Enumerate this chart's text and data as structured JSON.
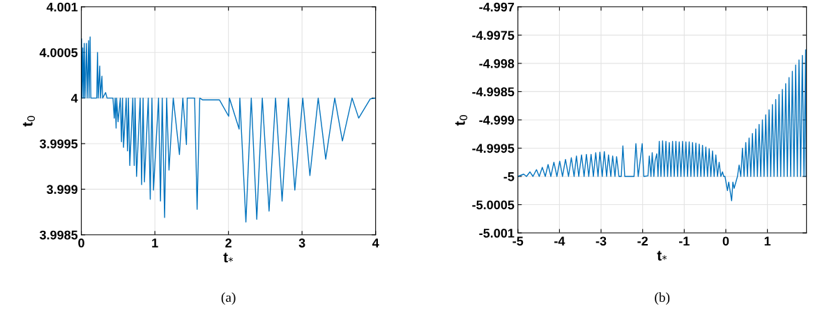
{
  "chart_data": [
    {
      "type": "line",
      "xlabel": "t$_{*}$",
      "ylabel": "t$_{0}$",
      "annotations": [
        "(a)"
      ],
      "xlim": [
        0,
        4
      ],
      "xticks": [
        0,
        1,
        2,
        3,
        4
      ],
      "ylim": [
        3.9985,
        4.001
      ],
      "yticks": [
        3.9985,
        3.999,
        3.9995,
        4,
        4.0005,
        4.001
      ],
      "grid": true,
      "series": [
        {
          "color": "#0072bd",
          "x": [
            0,
            0.003,
            0.01,
            0.02,
            0.03,
            0.04,
            0.05,
            0.07,
            0.08,
            0.1,
            0.105,
            0.12,
            0.13,
            0.21,
            0.22,
            0.23,
            0.25,
            0.26,
            0.28,
            0.29,
            0.33,
            0.35,
            0.43,
            0.448,
            0.46,
            0.473,
            0.48,
            0.5,
            0.53,
            0.546,
            0.56,
            0.574,
            0.61,
            0.628,
            0.64,
            0.659,
            0.7,
            0.719,
            0.73,
            0.751,
            0.8,
            0.82,
            0.84,
            0.858,
            0.91,
            0.937,
            0.96,
            0.981,
            1.05,
            1.076,
            1.1,
            1.132,
            1.16,
            1.192,
            1.25,
            1.334,
            1.38,
            1.429,
            1.44,
            1.54,
            1.574,
            1.61,
            1.647,
            1.877,
            2.003,
            2.013,
            2.145,
            2.155,
            2.237,
            2.31,
            2.385,
            2.46,
            2.552,
            2.64,
            2.729,
            2.815,
            2.902,
            3.01,
            3.107,
            3.22,
            3.322,
            3.445,
            3.549,
            3.68,
            3.77,
            3.927,
            4.0
          ],
          "values": [
            4.0,
            4.00065,
            4.0,
            4.00055,
            4.0,
            4.0006,
            4.0,
            4.0006,
            4.0,
            4.00063,
            4.0,
            4.00067,
            4.0,
            4.0,
            4.0005,
            4.0,
            4.00035,
            4.0,
            4.00024,
            4.0,
            4.00006,
            4.0,
            4.0,
            3.99978,
            4.0,
            3.99967,
            4.0,
            3.99974,
            4.0,
            3.99952,
            4.0,
            3.99946,
            4.0,
            3.99942,
            4.0,
            3.99926,
            4.0,
            3.99926,
            4.0,
            3.99914,
            4.0,
            3.99905,
            4.0,
            3.99908,
            4.0,
            3.99889,
            4.0,
            3.99899,
            4.0,
            3.99887,
            4.0,
            3.99869,
            4.0,
            3.99921,
            4.0,
            3.99938,
            4.0,
            3.99949,
            4.0,
            4.0,
            3.99878,
            4.0,
            3.99998,
            3.99998,
            3.9998,
            4.0,
            3.99966,
            4.0,
            3.99864,
            4.0,
            3.99867,
            4.0,
            3.99876,
            4.0,
            3.99887,
            4.0,
            3.99899,
            4.0,
            3.99915,
            4.0,
            3.99933,
            4.0,
            3.99953,
            4.0,
            3.99978,
            3.99999,
            4.0
          ]
        }
      ]
    },
    {
      "type": "line",
      "xlabel": "t$_{*}$",
      "ylabel": "t$_{0}$",
      "annotations": [
        "(b)"
      ],
      "xlim": [
        -5,
        1.94
      ],
      "xticks": [
        -5,
        -4,
        -3,
        -2,
        -1,
        0,
        1
      ],
      "ylim": [
        -5.001,
        -4.997
      ],
      "yticks": [
        -5.001,
        -5.0005,
        -5,
        -4.9995,
        -4.999,
        -4.9985,
        -4.998,
        -4.9975,
        -4.997
      ],
      "grid": true,
      "series": [
        {
          "color": "#0072bd",
          "x": [
            -5,
            -4.86,
            -4.793,
            -4.709,
            -4.637,
            -4.553,
            -4.486,
            -4.413,
            -4.341,
            -4.274,
            -4.207,
            -4.134,
            -4.061,
            -3.994,
            -3.927,
            -3.855,
            -3.782,
            -3.715,
            -3.648,
            -3.592,
            -3.536,
            -3.469,
            -3.408,
            -3.352,
            -3.296,
            -3.24,
            -3.184,
            -3.128,
            -3.073,
            -3.028,
            -2.972,
            -2.922,
            -2.866,
            -2.821,
            -2.765,
            -2.721,
            -2.665,
            -2.626,
            -2.57,
            -2.514,
            -2.475,
            -2.43,
            -2.207,
            -2.162,
            -2.106,
            -2.011,
            -1.972,
            -1.872,
            -1.84,
            -1.8,
            -1.77,
            -1.73,
            -1.7,
            -1.66,
            -1.63,
            -1.6,
            -1.56,
            -1.52,
            -1.48,
            -1.44,
            -1.4,
            -1.36,
            -1.32,
            -1.28,
            -1.24,
            -1.2,
            -1.16,
            -1.12,
            -1.08,
            -1.04,
            -1.0,
            -0.96,
            -0.92,
            -0.88,
            -0.84,
            -0.8,
            -0.76,
            -0.72,
            -0.68,
            -0.64,
            -0.6,
            -0.56,
            -0.52,
            -0.48,
            -0.44,
            -0.4,
            -0.36,
            -0.32,
            -0.28,
            -0.24,
            -0.2,
            -0.16,
            -0.12,
            -0.08,
            -0.05,
            -0.02,
            0.04,
            0.07,
            0.14,
            0.17,
            0.2,
            0.25,
            0.28,
            0.32,
            0.36,
            0.4,
            0.44,
            0.48,
            0.52,
            0.56,
            0.6,
            0.64,
            0.68,
            0.72,
            0.76,
            0.8,
            0.84,
            0.88,
            0.92,
            0.96,
            1.0,
            1.04,
            1.08,
            1.12,
            1.16,
            1.2,
            1.24,
            1.28,
            1.32,
            1.36,
            1.4,
            1.44,
            1.48,
            1.52,
            1.56,
            1.6,
            1.64,
            1.68,
            1.72,
            1.76,
            1.8,
            1.84,
            1.88,
            1.92,
            1.93,
            1.94
          ],
          "values": [
            -5.0,
            -4.99996,
            -5.0,
            -4.99992,
            -5.0,
            -4.99988,
            -5.0,
            -4.99984,
            -5.0,
            -4.99979,
            -5.0,
            -4.99975,
            -5.0,
            -4.99973,
            -5.0,
            -4.9997,
            -5.0,
            -4.99967,
            -5.0,
            -4.99964,
            -5.0,
            -4.99962,
            -5.0,
            -4.99961,
            -5.0,
            -4.99961,
            -5.0,
            -4.99958,
            -5.0,
            -4.99957,
            -5.0,
            -4.99956,
            -5.0,
            -4.99962,
            -5.0,
            -4.99964,
            -5.0,
            -4.99965,
            -5.0,
            -5.0,
            -4.99946,
            -5.0,
            -5.0,
            -4.99942,
            -5.0,
            -4.99942,
            -5.0,
            -4.99999,
            -4.99964,
            -5.0,
            -4.99958,
            -5.0,
            -4.99972,
            -4.9996,
            -5.0,
            -4.99938,
            -5.0,
            -4.99937,
            -5.0,
            -4.99938,
            -5.0,
            -4.9994,
            -5.0,
            -4.99938,
            -5.0,
            -4.99938,
            -5.0,
            -4.99939,
            -5.0,
            -4.99938,
            -5.0,
            -4.99939,
            -5.0,
            -4.99939,
            -5.0,
            -4.9994,
            -5.0,
            -4.99941,
            -5.0,
            -4.99943,
            -5.0,
            -4.99945,
            -5.0,
            -4.99948,
            -5.0,
            -4.99951,
            -5.0,
            -4.99955,
            -5.0,
            -4.99962,
            -5.0,
            -4.99975,
            -5.0,
            -4.99992,
            -5.0,
            -5.0,
            -5.00025,
            -5.0001,
            -5.00043,
            -5.0001,
            -5.00021,
            -5.00008,
            -5.0,
            -4.9998,
            -5.0,
            -4.9995,
            -5.0,
            -4.9994,
            -5.0,
            -4.99932,
            -5.0,
            -4.99924,
            -5.0,
            -4.99916,
            -5.0,
            -4.99908,
            -5.0,
            -4.999,
            -5.0,
            -4.99891,
            -5.0,
            -4.99882,
            -5.0,
            -4.99873,
            -5.0,
            -4.99864,
            -5.0,
            -4.99855,
            -5.0,
            -4.99846,
            -5.0,
            -4.99836,
            -5.0,
            -4.99825,
            -5.0,
            -4.99814,
            -5.0,
            -4.99803,
            -5.0,
            -4.99794,
            -5.0,
            -4.99786,
            -5.0,
            -4.99776,
            -5.0,
            -4.99775
          ]
        }
      ]
    }
  ]
}
